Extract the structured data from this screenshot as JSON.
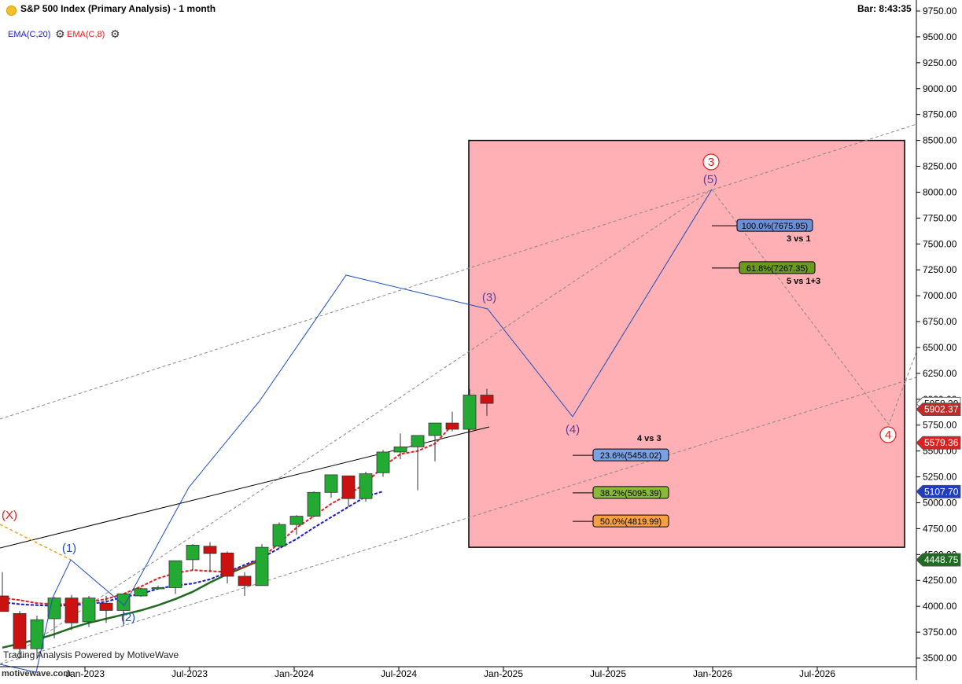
{
  "header": {
    "title": "S&P 500 Index (Primary Analysis) - 1 month",
    "bar_timer": "Bar: 8:43:35"
  },
  "indicators": [
    {
      "label": "EMA(C,20)",
      "color": "#1a1acc"
    },
    {
      "label": "EMA(C,8)",
      "color": "#e02020"
    }
  ],
  "footer": {
    "powered_by": "Trading Analysis Powered by MotiveWave",
    "site": "motivewave.com"
  },
  "chart_data": {
    "type": "candlestick",
    "y_axis": {
      "min": 3500,
      "max": 9750,
      "step": 250,
      "tick_labels": [
        "3500.00",
        "3750.00",
        "4000.00",
        "4250.00",
        "4500.00",
        "4750.00",
        "5000.00",
        "5250.00",
        "5500.00",
        "5750.00",
        "6000.00",
        "6250.00",
        "6500.00",
        "6750.00",
        "7000.00",
        "7250.00",
        "7500.00",
        "7750.00",
        "8000.00",
        "8250.00",
        "8500.00",
        "8750.00",
        "9000.00",
        "9250.00",
        "9500.00",
        "9750.00"
      ]
    },
    "x_axis": {
      "tick_labels": [
        "Jan-2023",
        "Jul-2023",
        "Jan-2024",
        "Jul-2024",
        "Jan-2025",
        "Jul-2025",
        "Jan-2026",
        "Jul-2026"
      ]
    },
    "candles": [
      {
        "o": 4100,
        "h": 4330,
        "l": 3950,
        "c": 3950
      },
      {
        "o": 3930,
        "h": 3955,
        "l": 3490,
        "c": 3590
      },
      {
        "o": 3590,
        "h": 3910,
        "l": 3490,
        "c": 3870
      },
      {
        "o": 3880,
        "h": 4090,
        "l": 3690,
        "c": 4080
      },
      {
        "o": 4080,
        "h": 4110,
        "l": 3770,
        "c": 3840
      },
      {
        "o": 3850,
        "h": 4100,
        "l": 3800,
        "c": 4080
      },
      {
        "o": 4030,
        "h": 4100,
        "l": 3840,
        "c": 3960
      },
      {
        "o": 3960,
        "h": 4120,
        "l": 3810,
        "c": 4120
      },
      {
        "o": 4100,
        "h": 4180,
        "l": 4090,
        "c": 4170
      },
      {
        "o": 4175,
        "h": 4200,
        "l": 4170,
        "c": 4180
      },
      {
        "o": 4180,
        "h": 4440,
        "l": 4120,
        "c": 4440
      },
      {
        "o": 4450,
        "h": 4600,
        "l": 4340,
        "c": 4590
      },
      {
        "o": 4580,
        "h": 4620,
        "l": 4330,
        "c": 4510
      },
      {
        "o": 4515,
        "h": 4530,
        "l": 4220,
        "c": 4290
      },
      {
        "o": 4290,
        "h": 4330,
        "l": 4100,
        "c": 4200
      },
      {
        "o": 4200,
        "h": 4600,
        "l": 4200,
        "c": 4570
      },
      {
        "o": 4580,
        "h": 4810,
        "l": 4560,
        "c": 4790
      },
      {
        "o": 4790,
        "h": 4880,
        "l": 4690,
        "c": 4870
      },
      {
        "o": 4870,
        "h": 5110,
        "l": 4860,
        "c": 5100
      },
      {
        "o": 5100,
        "h": 5270,
        "l": 5050,
        "c": 5270
      },
      {
        "o": 5260,
        "h": 5260,
        "l": 4960,
        "c": 5040
      },
      {
        "o": 5040,
        "h": 5300,
        "l": 5010,
        "c": 5280
      },
      {
        "o": 5290,
        "h": 5510,
        "l": 5250,
        "c": 5490
      },
      {
        "o": 5490,
        "h": 5670,
        "l": 5420,
        "c": 5540
      },
      {
        "o": 5540,
        "h": 5650,
        "l": 5120,
        "c": 5650
      },
      {
        "o": 5650,
        "h": 5770,
        "l": 5400,
        "c": 5770
      },
      {
        "o": 5770,
        "h": 5880,
        "l": 5690,
        "c": 5710
      },
      {
        "o": 5710,
        "h": 6100,
        "l": 5700,
        "c": 6040
      },
      {
        "o": 6040,
        "h": 6100,
        "l": 5840,
        "c": 5960
      }
    ],
    "ema_20": [
      4040,
      4020,
      4010,
      4005,
      4010,
      4020,
      4045,
      4090,
      4120,
      4170,
      4200,
      4220,
      4260,
      4330,
      4400,
      4470,
      4560,
      4650,
      4760,
      4860,
      4960,
      5060,
      5110
    ],
    "ema_8": [
      4080,
      4060,
      4030,
      4020,
      4020,
      4040,
      4070,
      4120,
      4190,
      4270,
      4320,
      4350,
      4340,
      4330,
      4380,
      4470,
      4610,
      4760,
      4870,
      4990,
      5080,
      5190,
      5350,
      5470,
      5500,
      5570,
      5750
    ],
    "ema_long": [
      3600,
      3640,
      3680,
      3730,
      3790,
      3840,
      3880,
      3920,
      3960,
      4010,
      4070,
      4140,
      4230,
      4310,
      4380,
      4450
    ],
    "wave_labels": [
      {
        "text": "(X)",
        "color": "#e02020"
      },
      {
        "text": "(1)",
        "color": "#1f4fbf"
      },
      {
        "text": "(2)",
        "color": "#1f4fbf"
      },
      {
        "text": "(3)",
        "color": "#5a3fa0"
      },
      {
        "text": "(4)",
        "color": "#5a3fa0"
      },
      {
        "text": "(5)",
        "color": "#5a3fa0"
      },
      {
        "text": "3",
        "color": "#e02020"
      },
      {
        "text": "4",
        "color": "#e02020"
      }
    ],
    "fib_levels": [
      {
        "label": "100.0%(7675.95)",
        "value": 7675.95,
        "note": "3 vs 1",
        "fill": "#6c8fd6"
      },
      {
        "label": "61.8%(7267.35)",
        "value": 7267.35,
        "note": "5 vs 1+3",
        "fill": "#6b9a1f"
      },
      {
        "label": "23.6%(5458.02)",
        "value": 5458.02,
        "note": "4 vs 3",
        "fill": "#7aa2e3"
      },
      {
        "label": "38.2%(5095.39)",
        "value": 5095.39,
        "note": "",
        "fill": "#8ab83a"
      },
      {
        "label": "50.0%(4819.99)",
        "value": 4819.99,
        "note": "",
        "fill": "#f5a043"
      }
    ],
    "price_tags": [
      {
        "label": "5958.29",
        "value": 5958.29,
        "bg": "#ffffff",
        "fg": "#000000"
      },
      {
        "label": "5902.37",
        "value": 5902.37,
        "bg": "#c22a2a",
        "fg": "#ffffff"
      },
      {
        "label": "5579.36",
        "value": 5579.36,
        "bg": "#e02020",
        "fg": "#ffffff"
      },
      {
        "label": "5107.70",
        "value": 5107.7,
        "bg": "#1f3fbf",
        "fg": "#ffffff"
      },
      {
        "label": "4448.75",
        "value": 4448.75,
        "bg": "#1f6b1f",
        "fg": "#ffffff"
      }
    ],
    "target_box": {
      "top": 8500,
      "bottom": 4570,
      "fill": "#ffb0b4"
    },
    "grid": false,
    "legend": "top-left"
  }
}
